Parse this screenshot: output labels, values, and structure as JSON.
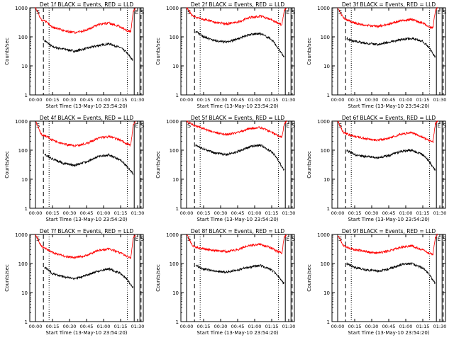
{
  "chart_data": [
    {
      "type": "line",
      "title": "Det 1f BLACK = Events, RED = LLD",
      "xlabel": "Start Time (13-May-10 23:54:20)",
      "ylabel": "Counts/sec",
      "ylim": [
        1,
        1000
      ],
      "yscale": "log",
      "x_ticks": [
        "00:00",
        "00:15",
        "00:30",
        "00:45",
        "01:00",
        "01:15",
        "01:30"
      ],
      "y_ticks": [
        "1",
        "10",
        "100",
        "1000"
      ],
      "x_range_min": [
        -5,
        95
      ],
      "annotations": [
        "S",
        "E",
        "S"
      ],
      "markers": {
        "S_min": 0,
        "E_min": 87,
        "S2_min": 92,
        "dashed_min": [
          7,
          93
        ],
        "dotted_min": [
          12,
          81
        ]
      },
      "series": [
        {
          "name": "Events",
          "color": "#000000",
          "x_min": [
            8,
            10,
            15,
            25,
            35,
            45,
            55,
            65,
            75,
            80,
            86
          ],
          "values": [
            75,
            65,
            45,
            38,
            32,
            40,
            50,
            58,
            42,
            30,
            15
          ]
        },
        {
          "name": "LLD",
          "color": "#ff0000",
          "x_min": [
            0,
            2,
            5,
            7,
            10,
            15,
            25,
            35,
            45,
            55,
            65,
            75,
            80,
            84,
            86,
            88
          ],
          "values": [
            1000,
            700,
            400,
            360,
            320,
            220,
            160,
            140,
            170,
            260,
            300,
            220,
            170,
            150,
            700,
            1000
          ]
        }
      ]
    },
    {
      "type": "line",
      "title": "Det 2f BLACK = Events, RED = LLD",
      "xlabel": "Start Time (13-May-10 23:54:20)",
      "ylabel": "Counts/sec",
      "ylim": [
        1,
        1000
      ],
      "yscale": "log",
      "x_ticks": [
        "00:00",
        "00:15",
        "00:30",
        "00:45",
        "01:00",
        "01:15",
        "01:30"
      ],
      "y_ticks": [
        "1",
        "10",
        "100",
        "1000"
      ],
      "x_range_min": [
        -5,
        95
      ],
      "annotations": [
        "S",
        "E",
        "S"
      ],
      "markers": {
        "S_min": 0,
        "E_min": 87,
        "S2_min": 92,
        "dashed_min": [
          7,
          93
        ],
        "dotted_min": [
          12,
          81
        ]
      },
      "series": [
        {
          "name": "Events",
          "color": "#000000",
          "x_min": [
            8,
            10,
            15,
            25,
            35,
            45,
            55,
            65,
            75,
            80,
            86
          ],
          "values": [
            150,
            140,
            100,
            75,
            65,
            85,
            120,
            130,
            80,
            45,
            20
          ]
        },
        {
          "name": "LLD",
          "color": "#ff0000",
          "x_min": [
            0,
            2,
            5,
            7,
            10,
            15,
            25,
            35,
            45,
            55,
            65,
            75,
            80,
            84,
            86,
            88
          ],
          "values": [
            1000,
            800,
            550,
            500,
            450,
            400,
            320,
            280,
            320,
            460,
            520,
            380,
            300,
            260,
            800,
            1000
          ]
        }
      ]
    },
    {
      "type": "line",
      "title": "Det 3f BLACK = Events, RED = LLD",
      "xlabel": "Start Time (13-May-10 23:54:20)",
      "ylabel": "Counts/sec",
      "ylim": [
        1,
        1000
      ],
      "yscale": "log",
      "x_ticks": [
        "00:00",
        "00:15",
        "00:30",
        "00:45",
        "01:00",
        "01:15",
        "01:30"
      ],
      "y_ticks": [
        "1",
        "10",
        "100",
        "1000"
      ],
      "x_range_min": [
        -5,
        95
      ],
      "annotations": [
        "S",
        "E",
        "S"
      ],
      "markers": {
        "S_min": 0,
        "E_min": 87,
        "S2_min": 92,
        "dashed_min": [
          7,
          93
        ],
        "dotted_min": [
          12,
          81
        ]
      },
      "series": [
        {
          "name": "Events",
          "color": "#000000",
          "x_min": [
            8,
            10,
            15,
            25,
            35,
            45,
            55,
            65,
            75,
            80,
            86
          ],
          "values": [
            90,
            80,
            70,
            60,
            55,
            65,
            80,
            90,
            70,
            45,
            20
          ]
        },
        {
          "name": "LLD",
          "color": "#ff0000",
          "x_min": [
            0,
            2,
            5,
            7,
            10,
            15,
            25,
            35,
            45,
            55,
            65,
            75,
            80,
            84,
            86,
            88
          ],
          "values": [
            1000,
            700,
            450,
            400,
            350,
            300,
            250,
            230,
            270,
            360,
            400,
            300,
            230,
            200,
            800,
            1000
          ]
        }
      ]
    },
    {
      "type": "line",
      "title": "Det 4f BLACK = Events, RED = LLD",
      "xlabel": "Start Time (13-May-10 23:54:20)",
      "ylabel": "Counts/sec",
      "ylim": [
        1,
        1000
      ],
      "yscale": "log",
      "x_ticks": [
        "00:00",
        "00:15",
        "00:30",
        "00:45",
        "01:00",
        "01:15",
        "01:30"
      ],
      "y_ticks": [
        "1",
        "10",
        "100",
        "1000"
      ],
      "x_range_min": [
        -5,
        95
      ],
      "annotations": [
        "S",
        "E",
        "S"
      ],
      "markers": {
        "S_min": 0,
        "E_min": 87,
        "S2_min": 92,
        "dashed_min": [
          7,
          93
        ],
        "dotted_min": [
          12,
          81
        ]
      },
      "series": [
        {
          "name": "Events",
          "color": "#000000",
          "x_min": [
            8,
            10,
            15,
            25,
            35,
            45,
            55,
            65,
            75,
            80,
            86
          ],
          "values": [
            75,
            65,
            50,
            35,
            30,
            40,
            60,
            70,
            45,
            30,
            15
          ]
        },
        {
          "name": "LLD",
          "color": "#ff0000",
          "x_min": [
            0,
            2,
            5,
            7,
            10,
            15,
            25,
            35,
            45,
            55,
            65,
            75,
            80,
            84,
            86,
            88
          ],
          "values": [
            1000,
            700,
            350,
            320,
            300,
            220,
            160,
            140,
            170,
            260,
            300,
            220,
            170,
            150,
            700,
            1000
          ]
        }
      ]
    },
    {
      "type": "line",
      "title": "Det 5f BLACK = Events, RED = LLD",
      "xlabel": "Start Time (13-May-10 23:54:20)",
      "ylabel": "Counts/sec",
      "ylim": [
        1,
        1000
      ],
      "yscale": "log",
      "x_ticks": [
        "00:00",
        "00:15",
        "00:30",
        "00:45",
        "01:00",
        "01:15",
        "01:30"
      ],
      "y_ticks": [
        "1",
        "10",
        "100",
        "1000"
      ],
      "x_range_min": [
        -5,
        95
      ],
      "annotations": [
        "S",
        "E",
        "S"
      ],
      "markers": {
        "S_min": 0,
        "E_min": 87,
        "S2_min": 92,
        "dashed_min": [
          7,
          93
        ],
        "dotted_min": [
          12,
          81
        ]
      },
      "series": [
        {
          "name": "Events",
          "color": "#000000",
          "x_min": [
            8,
            10,
            15,
            25,
            35,
            45,
            55,
            65,
            75,
            80,
            86
          ],
          "values": [
            150,
            140,
            110,
            80,
            70,
            90,
            130,
            150,
            90,
            50,
            20
          ]
        },
        {
          "name": "LLD",
          "color": "#ff0000",
          "x_min": [
            0,
            2,
            5,
            7,
            10,
            15,
            25,
            35,
            45,
            55,
            65,
            75,
            80,
            84,
            86,
            88
          ],
          "values": [
            1000,
            900,
            750,
            700,
            650,
            550,
            400,
            350,
            400,
            550,
            600,
            420,
            320,
            280,
            800,
            1000
          ]
        }
      ]
    },
    {
      "type": "line",
      "title": "Det 6f BLACK = Events, RED = LLD",
      "xlabel": "Start Time (13-May-10 23:54:20)",
      "ylabel": "Counts/sec",
      "ylim": [
        1,
        1000
      ],
      "yscale": "log",
      "x_ticks": [
        "00:00",
        "00:15",
        "00:30",
        "00:45",
        "01:00",
        "01:15",
        "01:30"
      ],
      "y_ticks": [
        "1",
        "10",
        "100",
        "1000"
      ],
      "x_range_min": [
        -5,
        95
      ],
      "annotations": [
        "S",
        "E",
        "S"
      ],
      "markers": {
        "S_min": 0,
        "E_min": 87,
        "S2_min": 92,
        "dashed_min": [
          7,
          93
        ],
        "dotted_min": [
          12,
          81
        ]
      },
      "series": [
        {
          "name": "Events",
          "color": "#000000",
          "x_min": [
            8,
            10,
            15,
            25,
            35,
            45,
            55,
            65,
            75,
            80,
            86
          ],
          "values": [
            100,
            90,
            70,
            60,
            55,
            65,
            90,
            100,
            70,
            45,
            20
          ]
        },
        {
          "name": "LLD",
          "color": "#ff0000",
          "x_min": [
            0,
            2,
            5,
            7,
            10,
            15,
            25,
            35,
            45,
            55,
            65,
            75,
            80,
            84,
            86,
            88
          ],
          "values": [
            1000,
            700,
            420,
            380,
            340,
            300,
            250,
            220,
            260,
            350,
            400,
            280,
            220,
            190,
            800,
            1000
          ]
        }
      ]
    },
    {
      "type": "line",
      "title": "Det 7f BLACK = Events, RED = LLD",
      "xlabel": "Start Time (13-May-10 23:54:20)",
      "ylabel": "Counts/sec",
      "ylim": [
        1,
        1000
      ],
      "yscale": "log",
      "x_ticks": [
        "00:00",
        "00:15",
        "00:30",
        "00:45",
        "01:00",
        "01:15",
        "01:30"
      ],
      "y_ticks": [
        "1",
        "10",
        "100",
        "1000"
      ],
      "x_range_min": [
        -5,
        95
      ],
      "annotations": [
        "S",
        "E",
        "S"
      ],
      "markers": {
        "S_min": 0,
        "E_min": 87,
        "S2_min": 92,
        "dashed_min": [
          7,
          93
        ],
        "dotted_min": [
          12,
          81
        ]
      },
      "series": [
        {
          "name": "Events",
          "color": "#000000",
          "x_min": [
            8,
            10,
            15,
            25,
            35,
            45,
            55,
            65,
            75,
            80,
            86
          ],
          "values": [
            75,
            65,
            45,
            35,
            30,
            40,
            55,
            65,
            45,
            30,
            15
          ]
        },
        {
          "name": "LLD",
          "color": "#ff0000",
          "x_min": [
            0,
            2,
            5,
            7,
            10,
            15,
            25,
            35,
            45,
            55,
            65,
            75,
            80,
            84,
            86,
            88
          ],
          "values": [
            1000,
            700,
            400,
            350,
            320,
            240,
            180,
            160,
            190,
            280,
            320,
            230,
            180,
            160,
            700,
            1000
          ]
        }
      ]
    },
    {
      "type": "line",
      "title": "Det 8f BLACK = Events, RED = LLD",
      "xlabel": "Start Time (13-May-10 23:54:20)",
      "ylabel": "Counts/sec",
      "ylim": [
        1,
        1000
      ],
      "yscale": "log",
      "x_ticks": [
        "00:00",
        "00:15",
        "00:30",
        "00:45",
        "01:00",
        "01:15",
        "01:30"
      ],
      "y_ticks": [
        "1",
        "10",
        "100",
        "1000"
      ],
      "x_range_min": [
        -5,
        95
      ],
      "annotations": [
        "S",
        "E",
        "S"
      ],
      "markers": {
        "S_min": 0,
        "E_min": 87,
        "S2_min": 92,
        "dashed_min": [
          7,
          93
        ],
        "dotted_min": [
          12,
          81
        ]
      },
      "series": [
        {
          "name": "Events",
          "color": "#000000",
          "x_min": [
            8,
            10,
            15,
            25,
            35,
            45,
            55,
            65,
            75,
            80,
            86
          ],
          "values": [
            90,
            80,
            65,
            55,
            50,
            60,
            75,
            85,
            60,
            40,
            20
          ]
        },
        {
          "name": "LLD",
          "color": "#ff0000",
          "x_min": [
            0,
            2,
            5,
            7,
            10,
            15,
            25,
            35,
            45,
            55,
            65,
            75,
            80,
            84,
            86,
            88
          ],
          "values": [
            1000,
            700,
            420,
            380,
            350,
            320,
            280,
            260,
            300,
            420,
            460,
            340,
            260,
            230,
            800,
            1000
          ]
        }
      ]
    },
    {
      "type": "line",
      "title": "Det 9f BLACK = Events, RED = LLD",
      "xlabel": "Start Time (13-May-10 23:54:20)",
      "ylabel": "Counts/sec",
      "ylim": [
        1,
        1000
      ],
      "yscale": "log",
      "x_ticks": [
        "00:00",
        "00:15",
        "00:30",
        "00:45",
        "01:00",
        "01:15",
        "01:30"
      ],
      "y_ticks": [
        "1",
        "10",
        "100",
        "1000"
      ],
      "x_range_min": [
        -5,
        95
      ],
      "annotations": [
        "S",
        "E",
        "S"
      ],
      "markers": {
        "S_min": 0,
        "E_min": 87,
        "S2_min": 92,
        "dashed_min": [
          7,
          93
        ],
        "dotted_min": [
          12,
          81
        ]
      },
      "series": [
        {
          "name": "Events",
          "color": "#000000",
          "x_min": [
            8,
            10,
            15,
            25,
            35,
            45,
            55,
            65,
            75,
            80,
            86
          ],
          "values": [
            100,
            90,
            75,
            60,
            55,
            65,
            90,
            100,
            70,
            45,
            20
          ]
        },
        {
          "name": "LLD",
          "color": "#ff0000",
          "x_min": [
            0,
            2,
            5,
            7,
            10,
            15,
            25,
            35,
            45,
            55,
            65,
            75,
            80,
            84,
            86,
            88
          ],
          "values": [
            1000,
            700,
            420,
            380,
            340,
            300,
            260,
            230,
            270,
            360,
            410,
            290,
            230,
            200,
            800,
            1000
          ]
        }
      ]
    }
  ]
}
